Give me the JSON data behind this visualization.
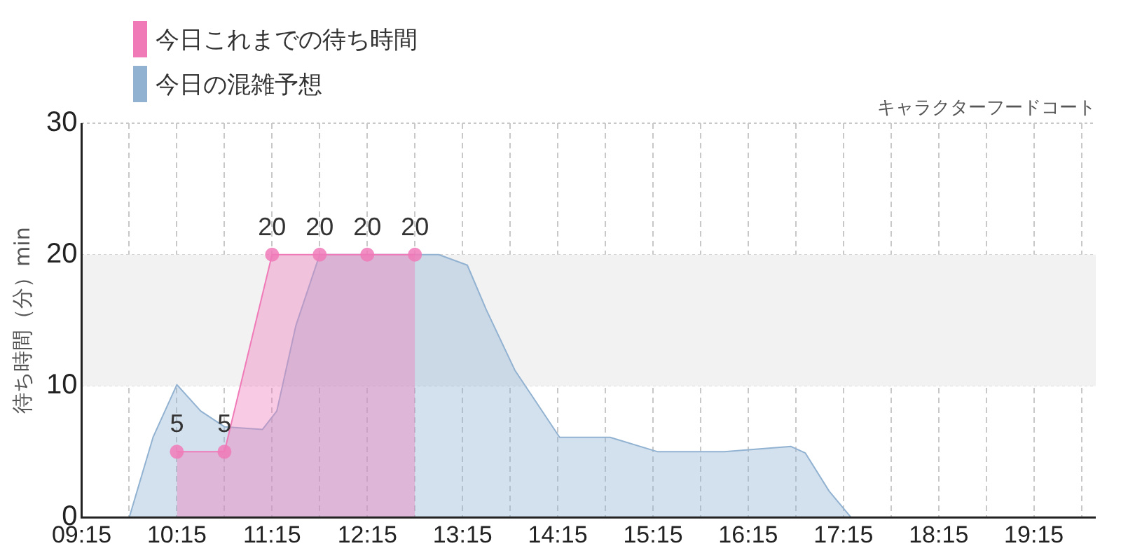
{
  "chart_data": {
    "type": "area",
    "ylabel": "待ち時間（分）min",
    "annotations": [
      "キャラクターフードコート"
    ],
    "legend": "top left",
    "grid": true,
    "line_style": "solid",
    "xlim": [
      9.25,
      19.9
    ],
    "xticks": [
      {
        "value": 9.25,
        "label": "09:15"
      },
      {
        "value": 9.75,
        "label": null
      },
      {
        "value": 10.25,
        "label": "10:15"
      },
      {
        "value": 10.75,
        "label": null
      },
      {
        "value": 11.25,
        "label": "11:15"
      },
      {
        "value": 11.75,
        "label": null
      },
      {
        "value": 12.25,
        "label": "12:15"
      },
      {
        "value": 12.75,
        "label": null
      },
      {
        "value": 13.25,
        "label": "13:15"
      },
      {
        "value": 13.75,
        "label": null
      },
      {
        "value": 14.25,
        "label": "14:15"
      },
      {
        "value": 14.75,
        "label": null
      },
      {
        "value": 15.25,
        "label": "15:15"
      },
      {
        "value": 15.75,
        "label": null
      },
      {
        "value": 16.25,
        "label": "16:15"
      },
      {
        "value": 16.75,
        "label": null
      },
      {
        "value": 17.25,
        "label": "17:15"
      },
      {
        "value": 17.75,
        "label": null
      },
      {
        "value": 18.25,
        "label": "18:15"
      },
      {
        "value": 18.75,
        "label": null
      },
      {
        "value": 19.25,
        "label": "19:15"
      },
      {
        "value": 19.75,
        "label": null
      }
    ],
    "ylim": [
      0,
      30
    ],
    "yticks": [
      0,
      10,
      20,
      30
    ],
    "bands": [
      {
        "axis": "y",
        "from": 10,
        "to": 20,
        "color": "#f2f2f2"
      }
    ],
    "series": [
      {
        "name": "今日これまでの待ち時間",
        "color": "#f07ab8",
        "marker": "circle",
        "x": [
          10.25,
          10.75,
          11.25,
          11.75,
          12.25,
          12.75
        ],
        "values": [
          5,
          5,
          20,
          20,
          20,
          20
        ],
        "value_labels": [
          "5",
          "5",
          "20",
          "20",
          "20",
          "20"
        ]
      },
      {
        "name": "今日の混雑予想",
        "color": "#92b2d2",
        "marker": "none",
        "x": [
          9.25,
          9.5,
          9.75,
          10.0,
          10.25,
          10.5,
          10.75,
          11.15,
          11.3,
          11.5,
          11.75,
          12.25,
          12.75,
          13.0,
          13.3,
          13.5,
          13.8,
          14.27,
          14.8,
          15.3,
          16.0,
          16.7,
          16.85,
          17.1,
          17.33,
          18.0,
          19.0,
          19.9
        ],
        "values": [
          0,
          0,
          0,
          6.1,
          10.1,
          8.1,
          6.9,
          6.7,
          8.1,
          14.6,
          20,
          20,
          20,
          20,
          19.2,
          15.8,
          11.2,
          6.1,
          6.1,
          5,
          5,
          5.4,
          4.9,
          2,
          0,
          0,
          0,
          0
        ]
      }
    ]
  }
}
